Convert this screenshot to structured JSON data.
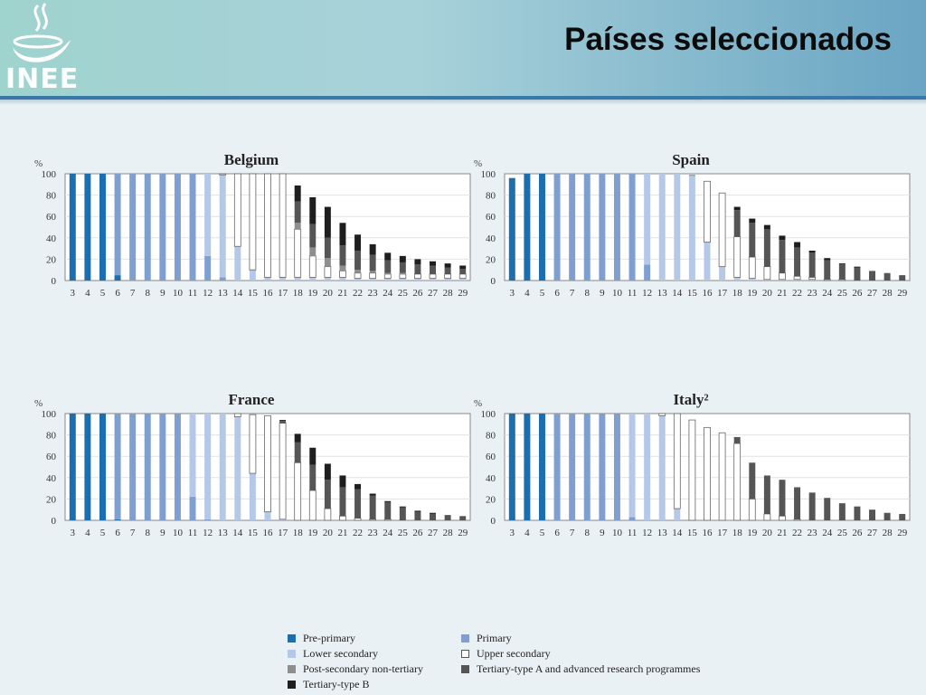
{
  "title": "Países seleccionados",
  "logo_text": "INEE",
  "colors": {
    "pre_primary": "#1b6eb0",
    "primary": "#7e9fd0",
    "lower_secondary": "#b6c8e8",
    "upper_secondary": "#ffffff",
    "post_secondary": "#8e8e8e",
    "tertiary_a": "#555555",
    "tertiary_b": "#1e1e1e"
  },
  "legend": {
    "pre_primary": "Pre-primary",
    "primary": "Primary",
    "lower_secondary": "Lower secondary",
    "upper_secondary": "Upper secondary",
    "post_secondary": "Post-secondary non-tertiary",
    "tertiary_a": "Tertiary-type A and advanced research programmes",
    "tertiary_b": "Tertiary-type B"
  },
  "chart_data": [
    {
      "type": "bar",
      "title": "Belgium",
      "ylabel": "%",
      "ylim": [
        0,
        100
      ],
      "yticks": [
        0,
        20,
        40,
        60,
        80,
        100
      ],
      "categories": [
        "3",
        "4",
        "5",
        "6",
        "7",
        "8",
        "9",
        "10",
        "11",
        "12",
        "13",
        "14",
        "15",
        "16",
        "17",
        "18",
        "19",
        "20",
        "21",
        "22",
        "23",
        "24",
        "25",
        "26",
        "27",
        "28",
        "29"
      ],
      "series": [
        {
          "key": "pre_primary",
          "values": [
            100,
            100,
            100,
            5,
            0,
            0,
            0,
            0,
            0,
            0,
            0,
            0,
            0,
            0,
            0,
            0,
            0,
            0,
            0,
            0,
            0,
            0,
            0,
            0,
            0,
            0,
            0
          ]
        },
        {
          "key": "primary",
          "values": [
            0,
            0,
            0,
            95,
            100,
            100,
            100,
            100,
            100,
            23,
            3,
            0,
            0,
            0,
            0,
            0,
            0,
            0,
            0,
            0,
            0,
            0,
            0,
            0,
            0,
            0,
            0
          ]
        },
        {
          "key": "lower_secondary",
          "values": [
            0,
            0,
            0,
            0,
            0,
            0,
            0,
            0,
            0,
            77,
            96,
            32,
            10,
            3,
            3,
            3,
            3,
            3,
            3,
            2,
            2,
            2,
            2,
            2,
            2,
            2,
            2
          ]
        },
        {
          "key": "upper_secondary",
          "values": [
            0,
            0,
            0,
            0,
            0,
            0,
            0,
            0,
            0,
            0,
            1,
            68,
            90,
            97,
            97,
            45,
            20,
            10,
            6,
            5,
            5,
            4,
            4,
            4,
            4,
            4,
            4
          ]
        },
        {
          "key": "post_secondary",
          "values": [
            0,
            0,
            0,
            0,
            0,
            0,
            0,
            0,
            0,
            0,
            0,
            0,
            0,
            0,
            0,
            6,
            8,
            8,
            5,
            3,
            2,
            1,
            1,
            0,
            0,
            0,
            0
          ]
        },
        {
          "key": "tertiary_a",
          "values": [
            0,
            0,
            0,
            0,
            0,
            0,
            0,
            0,
            0,
            0,
            0,
            0,
            0,
            0,
            0,
            20,
            22,
            19,
            19,
            18,
            15,
            12,
            10,
            9,
            8,
            6,
            5
          ]
        },
        {
          "key": "tertiary_b",
          "values": [
            0,
            0,
            0,
            0,
            0,
            0,
            0,
            0,
            0,
            0,
            0,
            0,
            0,
            0,
            0,
            15,
            25,
            29,
            21,
            15,
            10,
            7,
            6,
            5,
            4,
            4,
            3
          ]
        }
      ]
    },
    {
      "type": "bar",
      "title": "Spain",
      "ylabel": "%",
      "ylim": [
        0,
        100
      ],
      "yticks": [
        0,
        20,
        40,
        60,
        80,
        100
      ],
      "categories": [
        "3",
        "4",
        "5",
        "6",
        "7",
        "8",
        "9",
        "10",
        "11",
        "12",
        "13",
        "14",
        "15",
        "16",
        "17",
        "18",
        "19",
        "20",
        "21",
        "22",
        "23",
        "24",
        "25",
        "26",
        "27",
        "28",
        "29"
      ],
      "series": [
        {
          "key": "pre_primary",
          "values": [
            96,
            100,
            100,
            0,
            0,
            0,
            0,
            0,
            0,
            0,
            0,
            0,
            0,
            0,
            0,
            0,
            0,
            0,
            0,
            0,
            0,
            0,
            0,
            0,
            0,
            0,
            0
          ]
        },
        {
          "key": "primary",
          "values": [
            0,
            0,
            0,
            100,
            100,
            100,
            100,
            100,
            100,
            15,
            0,
            0,
            0,
            0,
            0,
            0,
            0,
            0,
            0,
            0,
            0,
            0,
            0,
            0,
            0,
            0,
            0
          ]
        },
        {
          "key": "lower_secondary",
          "values": [
            0,
            0,
            0,
            0,
            0,
            0,
            0,
            0,
            0,
            85,
            100,
            100,
            98,
            36,
            13,
            3,
            2,
            1,
            1,
            1,
            1,
            0,
            0,
            0,
            0,
            0,
            0
          ]
        },
        {
          "key": "upper_secondary",
          "values": [
            0,
            0,
            0,
            0,
            0,
            0,
            0,
            0,
            0,
            0,
            0,
            0,
            0,
            57,
            69,
            38,
            20,
            12,
            6,
            3,
            2,
            1,
            1,
            0,
            0,
            0,
            0
          ]
        },
        {
          "key": "post_secondary",
          "values": [
            0,
            0,
            0,
            0,
            0,
            0,
            0,
            0,
            0,
            0,
            0,
            0,
            1,
            0,
            0,
            0,
            0,
            0,
            0,
            0,
            0,
            0,
            0,
            0,
            0,
            0,
            0
          ]
        },
        {
          "key": "tertiary_a",
          "values": [
            0,
            0,
            0,
            0,
            0,
            0,
            0,
            0,
            0,
            0,
            0,
            0,
            0,
            0,
            0,
            25,
            32,
            35,
            31,
            27,
            23,
            18,
            14,
            12,
            9,
            7,
            5
          ]
        },
        {
          "key": "tertiary_b",
          "values": [
            0,
            0,
            0,
            0,
            0,
            0,
            0,
            0,
            0,
            0,
            0,
            0,
            0,
            0,
            0,
            3,
            4,
            4,
            4,
            5,
            2,
            2,
            1,
            1,
            0,
            0,
            0
          ]
        }
      ]
    },
    {
      "type": "bar",
      "title": "France",
      "ylabel": "%",
      "ylim": [
        0,
        100
      ],
      "yticks": [
        0,
        20,
        40,
        60,
        80,
        100
      ],
      "categories": [
        "3",
        "4",
        "5",
        "6",
        "7",
        "8",
        "9",
        "10",
        "11",
        "12",
        "13",
        "14",
        "15",
        "16",
        "17",
        "18",
        "19",
        "20",
        "21",
        "22",
        "23",
        "24",
        "25",
        "26",
        "27",
        "28",
        "29"
      ],
      "series": [
        {
          "key": "pre_primary",
          "values": [
            100,
            100,
            100,
            1,
            0,
            0,
            0,
            0,
            0,
            0,
            0,
            0,
            0,
            0,
            0,
            0,
            0,
            0,
            0,
            0,
            0,
            0,
            0,
            0,
            0,
            0,
            0
          ]
        },
        {
          "key": "primary",
          "values": [
            0,
            0,
            0,
            99,
            100,
            100,
            100,
            100,
            22,
            1,
            0,
            0,
            0,
            0,
            0,
            0,
            0,
            0,
            0,
            0,
            0,
            0,
            0,
            0,
            0,
            0,
            0
          ]
        },
        {
          "key": "lower_secondary",
          "values": [
            0,
            0,
            0,
            0,
            0,
            0,
            0,
            0,
            78,
            99,
            100,
            97,
            44,
            8,
            1,
            0,
            0,
            0,
            0,
            0,
            0,
            0,
            0,
            0,
            0,
            0,
            0
          ]
        },
        {
          "key": "upper_secondary",
          "values": [
            0,
            0,
            0,
            0,
            0,
            0,
            0,
            0,
            0,
            0,
            0,
            3,
            55,
            90,
            90,
            54,
            28,
            11,
            4,
            2,
            1,
            1,
            0,
            0,
            0,
            0,
            0
          ]
        },
        {
          "key": "post_secondary",
          "values": [
            0,
            0,
            0,
            0,
            0,
            0,
            0,
            0,
            0,
            0,
            0,
            0,
            0,
            0,
            0,
            0,
            0,
            0,
            0,
            0,
            0,
            0,
            0,
            0,
            0,
            0,
            0
          ]
        },
        {
          "key": "tertiary_a",
          "values": [
            0,
            0,
            0,
            0,
            0,
            0,
            0,
            0,
            0,
            0,
            0,
            0,
            0,
            0,
            2,
            19,
            24,
            27,
            27,
            27,
            22,
            16,
            12,
            8,
            6,
            5,
            4
          ]
        },
        {
          "key": "tertiary_b",
          "values": [
            0,
            0,
            0,
            0,
            0,
            0,
            0,
            0,
            0,
            0,
            0,
            0,
            0,
            0,
            1,
            8,
            16,
            15,
            11,
            5,
            2,
            1,
            1,
            1,
            1,
            0,
            0
          ]
        }
      ]
    },
    {
      "type": "bar",
      "title": "Italy²",
      "ylabel": "%",
      "ylim": [
        0,
        100
      ],
      "yticks": [
        0,
        20,
        40,
        60,
        80,
        100
      ],
      "categories": [
        "3",
        "4",
        "5",
        "6",
        "7",
        "8",
        "9",
        "10",
        "11",
        "12",
        "13",
        "14",
        "15",
        "16",
        "17",
        "18",
        "19",
        "20",
        "21",
        "22",
        "23",
        "24",
        "25",
        "26",
        "27",
        "28",
        "29"
      ],
      "series": [
        {
          "key": "pre_primary",
          "values": [
            100,
            100,
            100,
            0,
            0,
            0,
            0,
            0,
            0,
            0,
            0,
            0,
            0,
            0,
            0,
            0,
            0,
            0,
            0,
            0,
            0,
            0,
            0,
            0,
            0,
            0,
            0
          ]
        },
        {
          "key": "primary",
          "values": [
            0,
            0,
            0,
            100,
            100,
            100,
            100,
            100,
            3,
            0,
            0,
            0,
            0,
            0,
            0,
            0,
            0,
            0,
            0,
            0,
            0,
            0,
            0,
            0,
            0,
            0,
            0
          ]
        },
        {
          "key": "lower_secondary",
          "values": [
            0,
            0,
            0,
            0,
            0,
            0,
            0,
            0,
            97,
            100,
            98,
            11,
            0,
            0,
            0,
            0,
            0,
            0,
            0,
            0,
            0,
            0,
            0,
            0,
            0,
            0,
            0
          ]
        },
        {
          "key": "upper_secondary",
          "values": [
            0,
            0,
            0,
            0,
            0,
            0,
            0,
            0,
            0,
            0,
            2,
            89,
            94,
            87,
            82,
            72,
            20,
            6,
            4,
            1,
            0,
            0,
            0,
            0,
            0,
            0,
            0
          ]
        },
        {
          "key": "post_secondary",
          "values": [
            0,
            0,
            0,
            0,
            0,
            0,
            0,
            0,
            0,
            0,
            0,
            0,
            0,
            0,
            0,
            0,
            0,
            0,
            0,
            0,
            0,
            0,
            0,
            0,
            0,
            0,
            0
          ]
        },
        {
          "key": "tertiary_a",
          "values": [
            0,
            0,
            0,
            0,
            0,
            0,
            0,
            0,
            0,
            0,
            0,
            0,
            0,
            0,
            0,
            6,
            34,
            36,
            34,
            30,
            26,
            21,
            16,
            13,
            10,
            7,
            6
          ]
        },
        {
          "key": "tertiary_b",
          "values": [
            0,
            0,
            0,
            0,
            0,
            0,
            0,
            0,
            0,
            0,
            0,
            0,
            0,
            0,
            0,
            0,
            0,
            0,
            0,
            0,
            0,
            0,
            0,
            0,
            0,
            0,
            0
          ]
        }
      ]
    }
  ]
}
